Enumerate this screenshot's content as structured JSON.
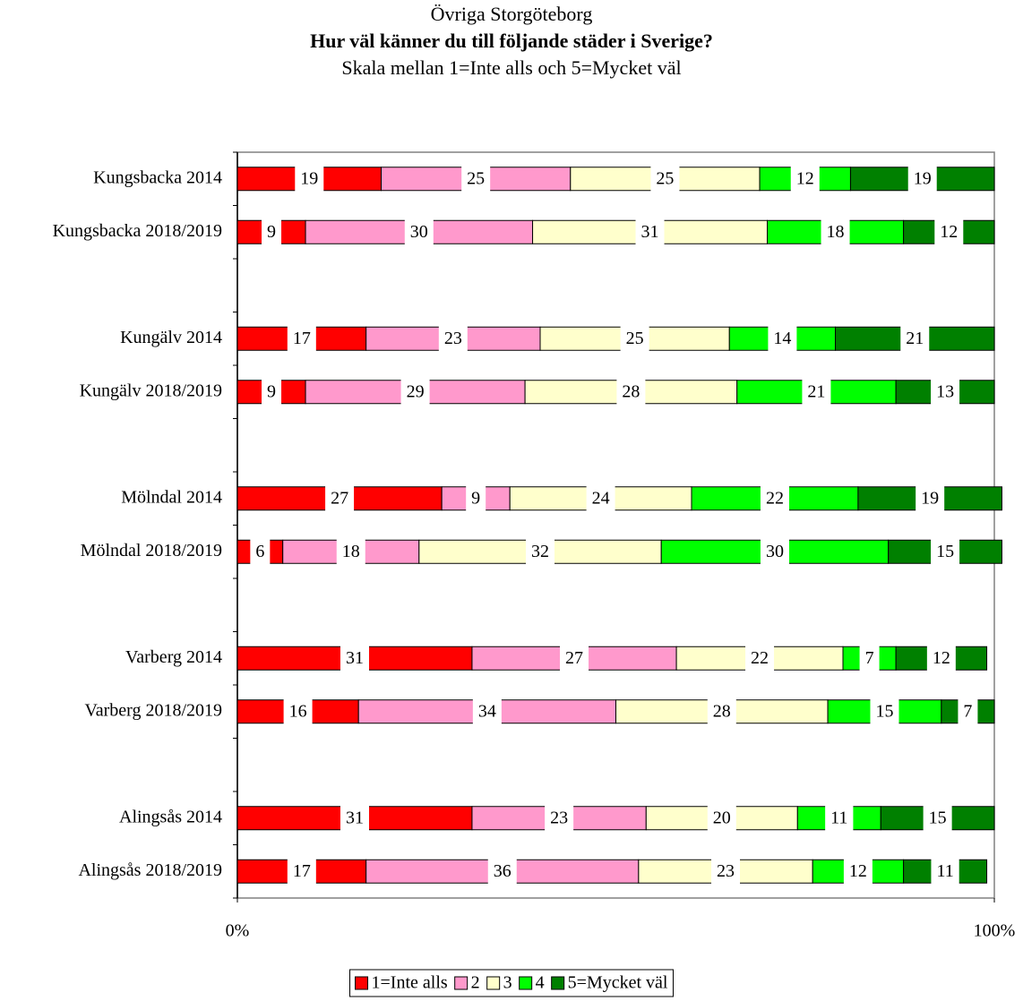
{
  "chart_data": {
    "type": "stacked_bar_horizontal",
    "title": "Övriga Storgöteborg",
    "subtitle": "Hur väl känner du till följande städer i Sverige?",
    "subtitle2": "Skala mellan 1=Inte alls och 5=Mycket väl",
    "categories": [
      "Kungsbacka 2014",
      "Kungsbacka 2018/2019",
      null,
      "Kungälv 2014",
      "Kungälv 2018/2019",
      null,
      "Mölndal 2014",
      "Mölndal 2018/2019",
      null,
      "Varberg 2014",
      "Varberg 2018/2019",
      null,
      "Alingsås 2014",
      "Alingsås 2018/2019"
    ],
    "series": [
      {
        "name": "1=Inte alls",
        "color": "#ff0000",
        "values": [
          19,
          9,
          null,
          17,
          9,
          null,
          27,
          6,
          null,
          31,
          16,
          null,
          31,
          17
        ]
      },
      {
        "name": "2",
        "color": "#ff99cc",
        "values": [
          25,
          30,
          null,
          23,
          29,
          null,
          9,
          18,
          null,
          27,
          34,
          null,
          23,
          36
        ]
      },
      {
        "name": "3",
        "color": "#ffffcc",
        "values": [
          25,
          31,
          null,
          25,
          28,
          null,
          24,
          32,
          null,
          22,
          28,
          null,
          20,
          23
        ]
      },
      {
        "name": "4",
        "color": "#00ff00",
        "values": [
          12,
          18,
          null,
          14,
          21,
          null,
          22,
          30,
          null,
          7,
          15,
          null,
          11,
          12
        ]
      },
      {
        "name": "5=Mycket väl",
        "color": "#008000",
        "values": [
          19,
          12,
          null,
          21,
          13,
          null,
          19,
          15,
          null,
          12,
          7,
          null,
          15,
          11
        ]
      }
    ],
    "xlim": [
      0,
      100
    ],
    "xticks": [
      {
        "value": 0,
        "label": "0%"
      },
      {
        "value": 100,
        "label": "100%"
      }
    ],
    "legend": "bottom"
  }
}
